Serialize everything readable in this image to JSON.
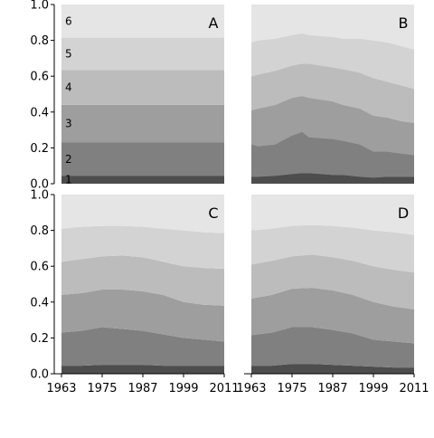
{
  "chart_data": {
    "type": "area",
    "stacked": true,
    "layout": "2x2 panels",
    "x_range": [
      1963,
      2011
    ],
    "x_ticks": [
      1963,
      1975,
      1987,
      1999,
      2011
    ],
    "y_range": [
      0,
      1
    ],
    "y_ticks": [
      "0.0",
      "0.2",
      "0.4",
      "0.6",
      "0.8",
      "1.0"
    ],
    "grid": false,
    "band_labels": [
      "1",
      "2",
      "3",
      "4",
      "5",
      "6"
    ],
    "band_colors": [
      "#4d4d4d",
      "#808080",
      "#9e9e9e",
      "#bcbcbc",
      "#d3d3d3",
      "#e5e5e5"
    ],
    "panels": [
      {
        "label": "A",
        "x": [
          1963,
          2011
        ],
        "boundaries": [
          [
            0.045,
            0.045
          ],
          [
            0.23,
            0.23
          ],
          [
            0.44,
            0.44
          ],
          [
            0.635,
            0.635
          ],
          [
            0.815,
            0.815
          ]
        ]
      },
      {
        "label": "B",
        "x": [
          1963,
          1965,
          1970,
          1975,
          1978,
          1980,
          1987,
          1990,
          1995,
          1999,
          2003,
          2007,
          2011
        ],
        "boundaries": [
          [
            0.04,
            0.04,
            0.045,
            0.055,
            0.06,
            0.06,
            0.05,
            0.05,
            0.04,
            0.035,
            0.04,
            0.04,
            0.04
          ],
          [
            0.22,
            0.21,
            0.22,
            0.27,
            0.29,
            0.26,
            0.25,
            0.24,
            0.22,
            0.18,
            0.18,
            0.17,
            0.16
          ],
          [
            0.41,
            0.42,
            0.44,
            0.48,
            0.49,
            0.48,
            0.46,
            0.44,
            0.42,
            0.38,
            0.37,
            0.35,
            0.34
          ],
          [
            0.6,
            0.61,
            0.63,
            0.66,
            0.67,
            0.67,
            0.65,
            0.64,
            0.62,
            0.59,
            0.57,
            0.55,
            0.53
          ],
          [
            0.79,
            0.8,
            0.81,
            0.83,
            0.84,
            0.83,
            0.82,
            0.81,
            0.81,
            0.8,
            0.79,
            0.77,
            0.75
          ]
        ]
      },
      {
        "label": "C",
        "x": [
          1963,
          1969,
          1975,
          1981,
          1987,
          1993,
          1999,
          2005,
          2011
        ],
        "boundaries": [
          [
            0.045,
            0.045,
            0.05,
            0.05,
            0.05,
            0.045,
            0.045,
            0.045,
            0.045
          ],
          [
            0.23,
            0.24,
            0.26,
            0.25,
            0.24,
            0.22,
            0.2,
            0.19,
            0.18
          ],
          [
            0.44,
            0.45,
            0.47,
            0.47,
            0.46,
            0.44,
            0.4,
            0.385,
            0.38
          ],
          [
            0.625,
            0.64,
            0.655,
            0.66,
            0.65,
            0.625,
            0.6,
            0.59,
            0.585
          ],
          [
            0.81,
            0.82,
            0.825,
            0.825,
            0.82,
            0.81,
            0.8,
            0.79,
            0.785
          ]
        ]
      },
      {
        "label": "D",
        "x": [
          1963,
          1969,
          1975,
          1981,
          1987,
          1993,
          1999,
          2005,
          2011
        ],
        "boundaries": [
          [
            0.045,
            0.045,
            0.055,
            0.055,
            0.05,
            0.045,
            0.04,
            0.035,
            0.035
          ],
          [
            0.215,
            0.23,
            0.26,
            0.26,
            0.245,
            0.225,
            0.19,
            0.18,
            0.17
          ],
          [
            0.42,
            0.44,
            0.475,
            0.48,
            0.465,
            0.44,
            0.4,
            0.375,
            0.36
          ],
          [
            0.61,
            0.63,
            0.655,
            0.665,
            0.65,
            0.63,
            0.6,
            0.58,
            0.565
          ],
          [
            0.8,
            0.81,
            0.825,
            0.83,
            0.825,
            0.815,
            0.8,
            0.79,
            0.775
          ]
        ]
      }
    ]
  }
}
